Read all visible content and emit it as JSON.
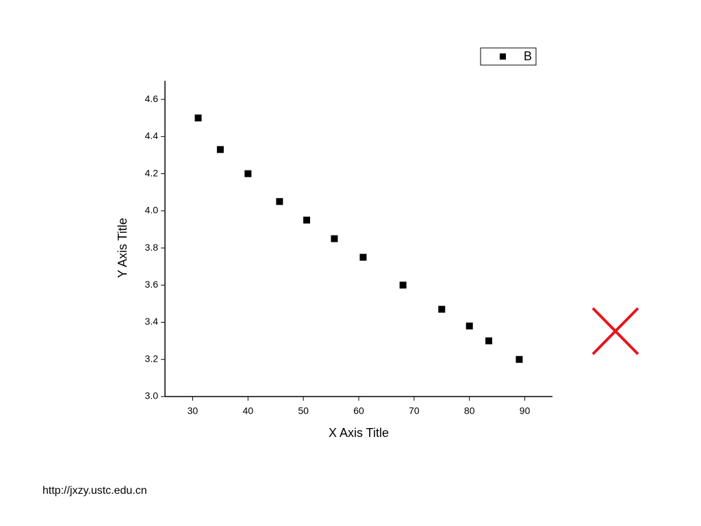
{
  "chart_data": {
    "type": "scatter",
    "x_label": "X Axis Title",
    "y_label": "Y Axis Title",
    "series": [
      {
        "name": "B",
        "color": "#000000",
        "x": [
          31,
          35,
          40,
          45.7,
          50.6,
          55.6,
          60.8,
          68,
          75,
          80,
          83.5,
          89
        ],
        "values": [
          4.5,
          4.33,
          4.2,
          4.05,
          3.95,
          3.85,
          3.75,
          3.6,
          3.47,
          3.38,
          3.3,
          3.2
        ]
      }
    ],
    "xlim": [
      25,
      95
    ],
    "xticks": [
      30,
      40,
      50,
      60,
      70,
      80,
      90
    ],
    "ylim": [
      3.0,
      4.7
    ],
    "yticks": [
      {
        "value": 3,
        "label": "3.0"
      },
      3.2,
      3.4,
      3.6,
      3.8,
      {
        "value": 4,
        "label": "4.0"
      },
      4.2,
      4.4,
      4.6
    ],
    "grid": false,
    "legend": "top-right"
  },
  "footer": "http://jxzy.ustc.edu.cn"
}
